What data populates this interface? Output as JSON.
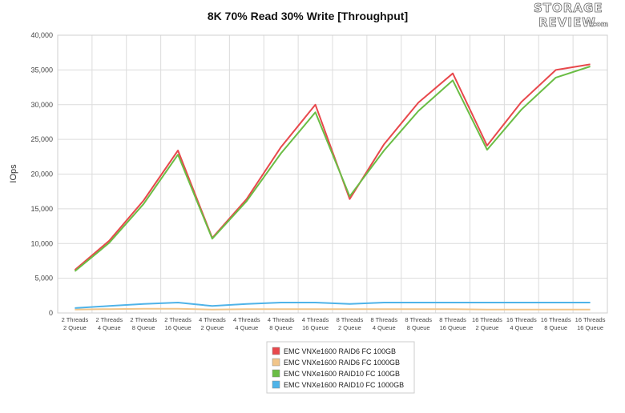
{
  "logo": {
    "line1": "STORAGE",
    "line2": "REVIEW",
    "suffix": ".com"
  },
  "chart_data": {
    "type": "line",
    "title": "8K 70% Read 30% Write [Throughput]",
    "ylabel": "IOps",
    "xlabel": "",
    "ylim": [
      0,
      40000
    ],
    "yticks": [
      0,
      5000,
      10000,
      15000,
      20000,
      25000,
      30000,
      35000,
      40000
    ],
    "ytick_labels": [
      "0",
      "5,000",
      "10,000",
      "15,000",
      "20,000",
      "25,000",
      "30,000",
      "35,000",
      "40,000"
    ],
    "grid": true,
    "legend_position": "bottom-center",
    "categories": [
      [
        "2 Threads",
        "2 Queue"
      ],
      [
        "2 Threads",
        "4 Queue"
      ],
      [
        "2 Threads",
        "8 Queue"
      ],
      [
        "2 Threads",
        "16 Queue"
      ],
      [
        "4 Threads",
        "2 Queue"
      ],
      [
        "4 Threads",
        "4 Queue"
      ],
      [
        "4 Threads",
        "8 Queue"
      ],
      [
        "4 Threads",
        "16 Queue"
      ],
      [
        "8 Threads",
        "2 Queue"
      ],
      [
        "8 Threads",
        "4 Queue"
      ],
      [
        "8 Threads",
        "8 Queue"
      ],
      [
        "8 Threads",
        "16 Queue"
      ],
      [
        "16 Threads",
        "2 Queue"
      ],
      [
        "16 Threads",
        "4 Queue"
      ],
      [
        "16 Threads",
        "8 Queue"
      ],
      [
        "16 Threads",
        "16 Queue"
      ]
    ],
    "series": [
      {
        "name": "EMC VNXe1600 RAID6 FC 100GB",
        "color": "#e8484c",
        "values": [
          6200,
          10400,
          16200,
          23400,
          10800,
          16400,
          23900,
          30000,
          16400,
          24300,
          30300,
          34500,
          24100,
          30400,
          35000,
          35800
        ]
      },
      {
        "name": "EMC VNXe1600 RAID6 FC 1000GB",
        "color": "#f1c58a",
        "values": [
          500,
          550,
          600,
          600,
          500,
          550,
          550,
          550,
          550,
          550,
          550,
          550,
          500,
          500,
          500,
          500
        ]
      },
      {
        "name": "EMC VNXe1600 RAID10 FC 100GB",
        "color": "#6abd45",
        "values": [
          6000,
          10100,
          15700,
          22800,
          10700,
          16100,
          23000,
          28900,
          16800,
          23400,
          29100,
          33500,
          23500,
          29300,
          33900,
          35500
        ]
      },
      {
        "name": "EMC VNXe1600 RAID10 FC 1000GB",
        "color": "#4fb3e8",
        "values": [
          700,
          1000,
          1300,
          1500,
          1000,
          1300,
          1500,
          1500,
          1300,
          1500,
          1500,
          1500,
          1500,
          1500,
          1500,
          1500
        ]
      }
    ]
  }
}
